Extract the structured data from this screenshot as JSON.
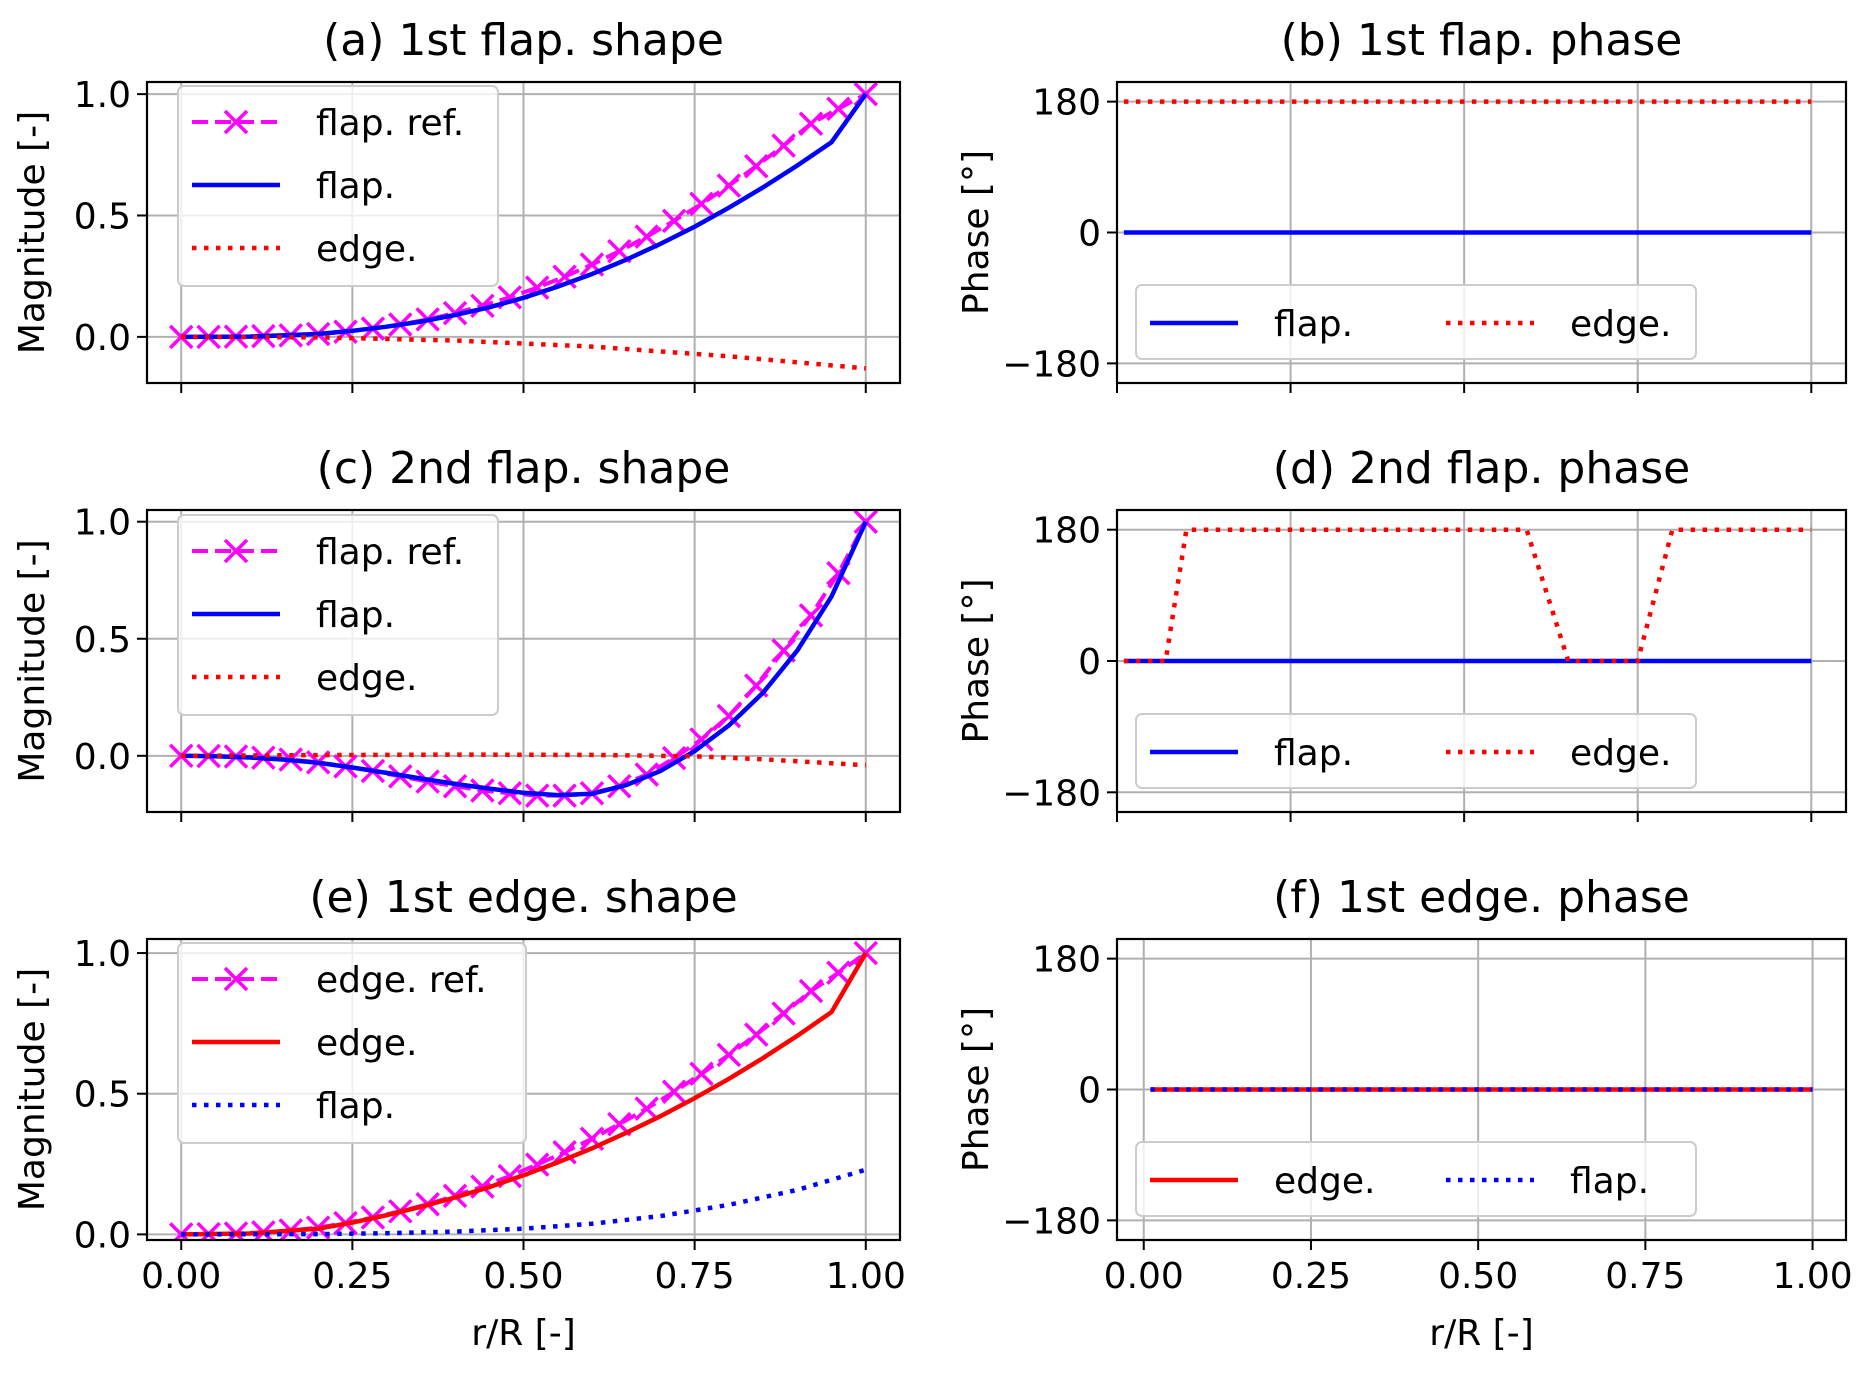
{
  "colors": {
    "magenta": "#ff00ff",
    "blue": "#0000ff",
    "red": "#ff0000",
    "grid": "#b0b0b0",
    "legend_border": "#cccccc"
  },
  "chart_data": [
    {
      "id": "a",
      "type": "line",
      "title": "(a) 1st flap. shape",
      "xlabel": "",
      "ylabel": "Magnitude [-]",
      "xlim": [
        -0.05,
        1.05
      ],
      "ylim": [
        -0.19,
        1.05
      ],
      "xticks": [
        0,
        0.25,
        0.5,
        0.75,
        1.0
      ],
      "xticklabels": [
        "0.00",
        "0.25",
        "0.50",
        "0.75",
        "1.00"
      ],
      "yticks": [
        0,
        0.5,
        1.0
      ],
      "yticklabels": [
        "0.0",
        "0.5",
        "1.0"
      ],
      "show_xticklabels": false,
      "legend": {
        "loc": "upper-left",
        "ncol": 1
      },
      "series": [
        {
          "name": "flap. ref.",
          "style": "ref",
          "color": "magenta",
          "x": [
            0,
            0.04,
            0.08,
            0.12,
            0.16,
            0.2,
            0.24,
            0.28,
            0.32,
            0.36,
            0.4,
            0.44,
            0.48,
            0.52,
            0.56,
            0.6,
            0.64,
            0.68,
            0.72,
            0.76,
            0.8,
            0.84,
            0.88,
            0.92,
            0.96,
            1.0
          ],
          "y": [
            0,
            0.0,
            0.001,
            0.003,
            0.006,
            0.012,
            0.021,
            0.034,
            0.051,
            0.072,
            0.098,
            0.128,
            0.163,
            0.203,
            0.248,
            0.298,
            0.353,
            0.413,
            0.478,
            0.548,
            0.623,
            0.703,
            0.788,
            0.878,
            0.94,
            1.0
          ]
        },
        {
          "name": "flap.",
          "style": "solid",
          "color": "blue",
          "x": [
            0,
            0.1,
            0.2,
            0.25,
            0.3,
            0.35,
            0.4,
            0.45,
            0.5,
            0.55,
            0.6,
            0.65,
            0.7,
            0.75,
            0.8,
            0.85,
            0.9,
            0.95,
            1.0
          ],
          "y": [
            0,
            0.001,
            0.012,
            0.025,
            0.042,
            0.063,
            0.09,
            0.122,
            0.161,
            0.207,
            0.259,
            0.318,
            0.383,
            0.454,
            0.532,
            0.616,
            0.706,
            0.802,
            1.0
          ]
        },
        {
          "name": "edge.",
          "style": "dotted",
          "color": "red",
          "x": [
            0,
            0.2,
            0.4,
            0.6,
            0.8,
            1.0
          ],
          "y": [
            0,
            -0.002,
            -0.015,
            -0.04,
            -0.08,
            -0.13
          ]
        }
      ]
    },
    {
      "id": "b",
      "type": "line",
      "title": "(b) 1st flap. phase",
      "xlabel": "",
      "ylabel": "Phase [°]",
      "xlim": [
        0.0,
        1.05
      ],
      "ylim": [
        -207,
        207
      ],
      "xticks": [
        0,
        0.25,
        0.5,
        0.75,
        1.0
      ],
      "xticklabels": [
        "0.00",
        "0.25",
        "0.50",
        "0.75",
        "1.00"
      ],
      "yticks": [
        -180,
        0,
        180
      ],
      "yticklabels": [
        "−180",
        "0",
        "180"
      ],
      "show_xticklabels": false,
      "legend": {
        "loc": "lower-left",
        "ncol": 2
      },
      "series": [
        {
          "name": "flap.",
          "style": "solid",
          "color": "blue",
          "x": [
            0.01,
            1.0
          ],
          "y": [
            0,
            0
          ]
        },
        {
          "name": "edge.",
          "style": "dotted",
          "color": "red",
          "x": [
            0.01,
            1.0
          ],
          "y": [
            180,
            180
          ]
        }
      ]
    },
    {
      "id": "c",
      "type": "line",
      "title": "(c) 2nd flap. shape",
      "xlabel": "",
      "ylabel": "Magnitude [-]",
      "xlim": [
        -0.05,
        1.05
      ],
      "ylim": [
        -0.24,
        1.05
      ],
      "xticks": [
        0,
        0.25,
        0.5,
        0.75,
        1.0
      ],
      "xticklabels": [
        "0.00",
        "0.25",
        "0.50",
        "0.75",
        "1.00"
      ],
      "yticks": [
        0,
        0.5,
        1.0
      ],
      "yticklabels": [
        "0.0",
        "0.5",
        "1.0"
      ],
      "show_xticklabels": false,
      "legend": {
        "loc": "upper-left",
        "ncol": 1
      },
      "series": [
        {
          "name": "flap. ref.",
          "style": "ref",
          "color": "magenta",
          "x": [
            0,
            0.04,
            0.08,
            0.12,
            0.16,
            0.2,
            0.24,
            0.28,
            0.32,
            0.36,
            0.4,
            0.44,
            0.48,
            0.52,
            0.56,
            0.6,
            0.64,
            0.68,
            0.72,
            0.76,
            0.8,
            0.84,
            0.88,
            0.92,
            0.96,
            1.0
          ],
          "y": [
            0,
            -0.001,
            -0.003,
            -0.008,
            -0.016,
            -0.028,
            -0.045,
            -0.065,
            -0.088,
            -0.11,
            -0.13,
            -0.148,
            -0.16,
            -0.17,
            -0.17,
            -0.16,
            -0.13,
            -0.08,
            -0.01,
            0.07,
            0.17,
            0.3,
            0.45,
            0.6,
            0.78,
            1.0
          ]
        },
        {
          "name": "flap.",
          "style": "solid",
          "color": "blue",
          "x": [
            0,
            0.05,
            0.1,
            0.15,
            0.2,
            0.25,
            0.3,
            0.35,
            0.4,
            0.45,
            0.5,
            0.55,
            0.6,
            0.65,
            0.7,
            0.75,
            0.8,
            0.85,
            0.9,
            0.95,
            1.0
          ],
          "y": [
            0,
            -0.002,
            -0.007,
            -0.016,
            -0.03,
            -0.05,
            -0.073,
            -0.097,
            -0.12,
            -0.14,
            -0.158,
            -0.168,
            -0.162,
            -0.125,
            -0.065,
            0.02,
            0.13,
            0.27,
            0.45,
            0.68,
            1.0
          ]
        },
        {
          "name": "edge.",
          "style": "dotted",
          "color": "red",
          "x": [
            0,
            0.2,
            0.4,
            0.6,
            0.75,
            0.85,
            1.0
          ],
          "y": [
            0,
            0.003,
            0.005,
            0.004,
            -0.002,
            -0.015,
            -0.04
          ]
        }
      ]
    },
    {
      "id": "d",
      "type": "line",
      "title": "(d) 2nd flap. phase",
      "xlabel": "",
      "ylabel": "Phase [°]",
      "xlim": [
        0.0,
        1.05
      ],
      "ylim": [
        -207,
        207
      ],
      "xticks": [
        0,
        0.25,
        0.5,
        0.75,
        1.0
      ],
      "xticklabels": [
        "0.00",
        "0.25",
        "0.50",
        "0.75",
        "1.00"
      ],
      "yticks": [
        -180,
        0,
        180
      ],
      "yticklabels": [
        "−180",
        "0",
        "180"
      ],
      "show_xticklabels": false,
      "legend": {
        "loc": "lower-left",
        "ncol": 2
      },
      "series": [
        {
          "name": "flap.",
          "style": "solid",
          "color": "blue",
          "x": [
            0.01,
            1.0
          ],
          "y": [
            0,
            0
          ]
        },
        {
          "name": "edge.",
          "style": "dotted",
          "color": "red",
          "x": [
            0.01,
            0.07,
            0.1,
            0.59,
            0.65,
            0.75,
            0.8,
            1.0
          ],
          "y": [
            0,
            0,
            180,
            180,
            0,
            0,
            180,
            180
          ]
        }
      ]
    },
    {
      "id": "e",
      "type": "line",
      "title": "(e) 1st edge. shape",
      "xlabel": "r/R [-]",
      "ylabel": "Magnitude [-]",
      "xlim": [
        -0.05,
        1.05
      ],
      "ylim": [
        -0.02,
        1.05
      ],
      "xticks": [
        0,
        0.25,
        0.5,
        0.75,
        1.0
      ],
      "xticklabels": [
        "0.00",
        "0.25",
        "0.50",
        "0.75",
        "1.00"
      ],
      "yticks": [
        0,
        0.5,
        1.0
      ],
      "yticklabels": [
        "0.0",
        "0.5",
        "1.0"
      ],
      "show_xticklabels": true,
      "legend": {
        "loc": "upper-left",
        "ncol": 1
      },
      "series": [
        {
          "name": "edge. ref.",
          "style": "ref",
          "color": "magenta",
          "x": [
            0,
            0.04,
            0.08,
            0.12,
            0.16,
            0.2,
            0.24,
            0.28,
            0.32,
            0.36,
            0.4,
            0.44,
            0.48,
            0.52,
            0.56,
            0.6,
            0.64,
            0.68,
            0.72,
            0.76,
            0.8,
            0.84,
            0.88,
            0.92,
            0.96,
            1.0
          ],
          "y": [
            0,
            0.001,
            0.003,
            0.007,
            0.014,
            0.024,
            0.04,
            0.06,
            0.082,
            0.107,
            0.137,
            0.17,
            0.207,
            0.248,
            0.292,
            0.34,
            0.392,
            0.447,
            0.507,
            0.571,
            0.638,
            0.71,
            0.785,
            0.865,
            0.93,
            1.0
          ]
        },
        {
          "name": "edge.",
          "style": "solid",
          "color": "red",
          "x": [
            0,
            0.1,
            0.2,
            0.25,
            0.3,
            0.35,
            0.4,
            0.45,
            0.5,
            0.55,
            0.6,
            0.65,
            0.7,
            0.75,
            0.8,
            0.85,
            0.9,
            0.95,
            1.0
          ],
          "y": [
            0,
            0.003,
            0.02,
            0.042,
            0.068,
            0.098,
            0.131,
            0.168,
            0.21,
            0.256,
            0.306,
            0.361,
            0.42,
            0.484,
            0.553,
            0.627,
            0.706,
            0.79,
            1.0
          ]
        },
        {
          "name": "flap.",
          "style": "dotted",
          "color": "blue",
          "x": [
            0,
            0.2,
            0.3,
            0.4,
            0.5,
            0.6,
            0.7,
            0.8,
            0.9,
            1.0
          ],
          "y": [
            0,
            0.001,
            0.004,
            0.01,
            0.02,
            0.038,
            0.065,
            0.105,
            0.158,
            0.23
          ]
        }
      ]
    },
    {
      "id": "f",
      "type": "line",
      "title": "(f) 1st edge. phase",
      "xlabel": "r/R [-]",
      "ylabel": "Phase [°]",
      "xlim": [
        -0.04,
        1.05
      ],
      "ylim": [
        -207,
        207
      ],
      "xticks": [
        0,
        0.25,
        0.5,
        0.75,
        1.0
      ],
      "xticklabels": [
        "0.00",
        "0.25",
        "0.50",
        "0.75",
        "1.00"
      ],
      "yticks": [
        -180,
        0,
        180
      ],
      "yticklabels": [
        "−180",
        "0",
        "180"
      ],
      "show_xticklabels": true,
      "legend": {
        "loc": "lower-left",
        "ncol": 2
      },
      "series": [
        {
          "name": "edge.",
          "style": "solid",
          "color": "red",
          "x": [
            0.01,
            1.0
          ],
          "y": [
            0,
            0
          ]
        },
        {
          "name": "flap.",
          "style": "dotted",
          "color": "blue",
          "x": [
            0.01,
            1.0
          ],
          "y": [
            0,
            0
          ]
        }
      ]
    }
  ]
}
